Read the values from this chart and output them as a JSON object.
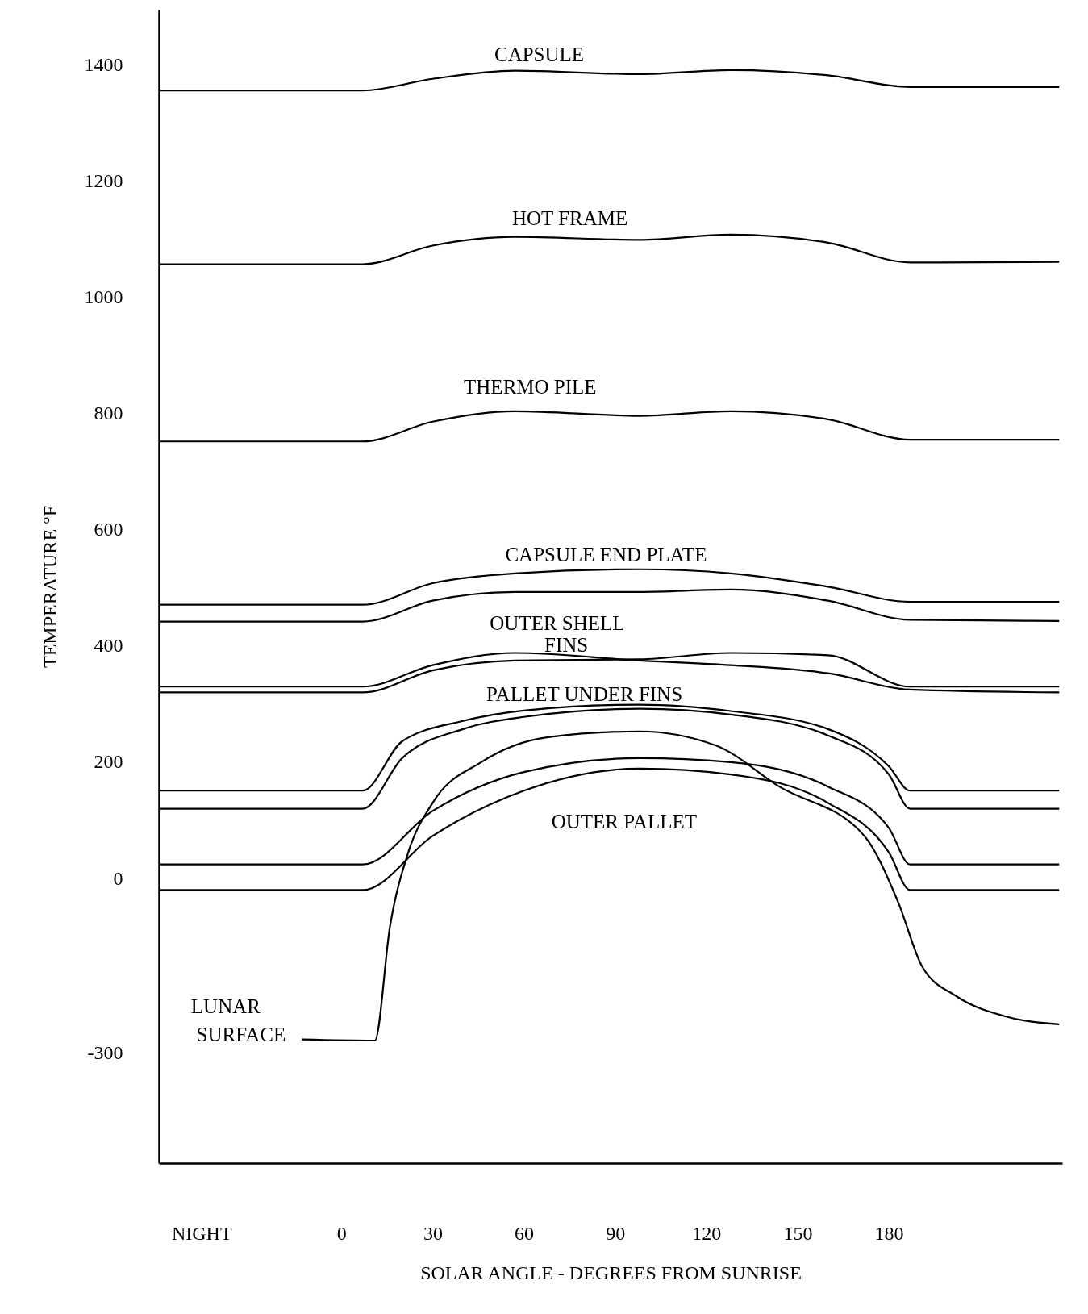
{
  "chart_data": {
    "type": "line",
    "xlabel": "SOLAR ANGLE - DEGREES FROM SUNRISE",
    "ylabel": "TEMPERATURE °F",
    "xlim": [
      -60,
      237
    ],
    "ylim": [
      -490,
      1495
    ],
    "xticks": [
      {
        "value": -46,
        "label": "NIGHT"
      },
      0,
      30,
      60,
      90,
      120,
      150,
      180
    ],
    "yticks": [
      -300,
      0,
      200,
      400,
      600,
      800,
      1000,
      1200,
      1400
    ],
    "series": [
      {
        "color": "#000000",
        "x": [
          -60,
          7,
          30,
          57,
          98,
          128,
          160,
          187,
          236
        ],
        "values": [
          1356,
          1356,
          1376,
          1390,
          1384,
          1391,
          1382,
          1362,
          1362
        ]
      },
      {
        "color": "#000000",
        "x": [
          -60,
          7,
          30,
          57,
          98,
          128,
          160,
          187,
          236
        ],
        "values": [
          1057,
          1057,
          1089,
          1104,
          1099,
          1108,
          1094,
          1060,
          1061
        ]
      },
      {
        "color": "#000000",
        "x": [
          -60,
          7,
          30,
          57,
          98,
          128,
          160,
          187,
          236
        ],
        "values": [
          752,
          752,
          786,
          804,
          796,
          804,
          790,
          755,
          755
        ]
      },
      {
        "color": "#000000",
        "x": [
          -60,
          7,
          30,
          57,
          98,
          128,
          160,
          187,
          236
        ],
        "values": [
          471,
          471,
          508,
          525,
          532,
          525,
          502,
          476,
          476
        ]
      },
      {
        "color": "#000000",
        "x": [
          -60,
          7,
          30,
          57,
          98,
          128,
          160,
          187,
          236
        ],
        "values": [
          442,
          442,
          478,
          493,
          493,
          497,
          478,
          445,
          443
        ]
      },
      {
        "color": "#000000",
        "x": [
          -60,
          7,
          30,
          57,
          98,
          128,
          160,
          187,
          236
        ],
        "values": [
          330,
          330,
          367,
          388,
          375,
          367,
          353,
          325,
          320
        ]
      },
      {
        "color": "#000000",
        "x": [
          -60,
          7,
          30,
          57,
          98,
          128,
          160,
          187,
          236
        ],
        "values": [
          320,
          320,
          358,
          375,
          377,
          388,
          384,
          330,
          330
        ]
      },
      {
        "color": "#000000",
        "x": [
          -60,
          7,
          20,
          40,
          60,
          98,
          128,
          160,
          180,
          187,
          236
        ],
        "values": [
          151,
          151,
          236,
          271,
          289,
          299,
          288,
          257,
          193,
          151,
          151
        ]
      },
      {
        "color": "#000000",
        "x": [
          -60,
          7,
          20,
          40,
          60,
          98,
          128,
          160,
          180,
          187,
          236
        ],
        "values": [
          120,
          120,
          207,
          257,
          278,
          292,
          282,
          246,
          179,
          120,
          120
        ]
      },
      {
        "color": "#000000",
        "x": [
          -60,
          7,
          30,
          60,
          98,
          128,
          160,
          180,
          187,
          236
        ],
        "values": [
          24,
          24,
          116,
          183,
          207,
          200,
          158,
          87,
          24,
          24
        ]
      },
      {
        "color": "#000000",
        "x": [
          -60,
          7,
          30,
          60,
          98,
          128,
          160,
          180,
          187,
          236
        ],
        "values": [
          -20,
          -20,
          73,
          151,
          189,
          179,
          130,
          45,
          -20,
          -20
        ]
      },
      {
        "color": "#000000",
        "x": [
          -13,
          11,
          16,
          22,
          30,
          46,
          68,
          98,
          123,
          144,
          172,
          183,
          191,
          202,
          218,
          236
        ],
        "values": [
          -277,
          -279,
          -82,
          45,
          130,
          200,
          243,
          253,
          229,
          158,
          73,
          -40,
          -152,
          -202,
          -237,
          -251
        ]
      }
    ],
    "annotations": [
      "CAPSULE",
      "HOT FRAME",
      "THERMO PILE",
      "CAPSULE END PLATE",
      "OUTER SHELL",
      "FINS",
      "PALLET UNDER FINS",
      "OUTER PALLET",
      "LUNAR",
      "SURFACE"
    ]
  }
}
